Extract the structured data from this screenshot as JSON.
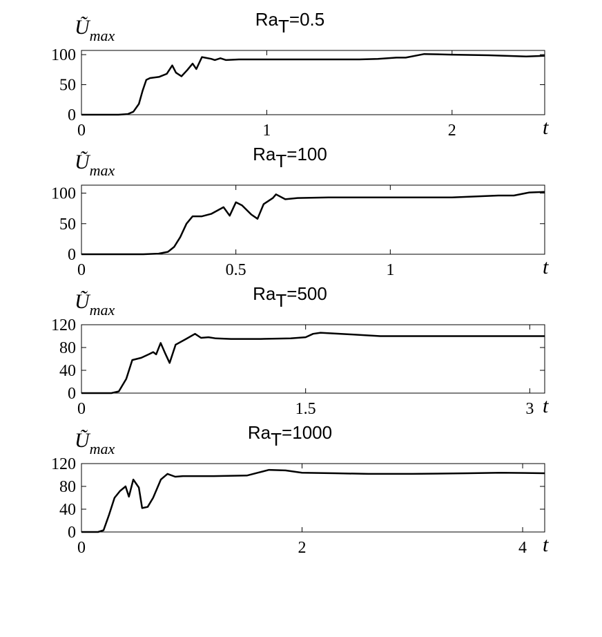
{
  "chart_data": [
    {
      "type": "line",
      "title_main": "Ra",
      "title_sub": "T",
      "title_rest": "=0.5",
      "ylabel": "Ũ",
      "ylabel_sub": "max",
      "xlabel": "t",
      "color": "#000000",
      "xlim": [
        0,
        2.5
      ],
      "xticks": [
        0,
        1,
        2
      ],
      "ylim": [
        0,
        107
      ],
      "yticks": [
        0,
        50,
        100
      ],
      "x": [
        0,
        0.2,
        0.25,
        0.28,
        0.31,
        0.33,
        0.35,
        0.37,
        0.42,
        0.46,
        0.49,
        0.51,
        0.54,
        0.57,
        0.6,
        0.62,
        0.65,
        0.7,
        0.72,
        0.75,
        0.78,
        0.85,
        1.0,
        1.5,
        1.6,
        1.7,
        1.75,
        1.85,
        2.0,
        2.2,
        2.4,
        2.5
      ],
      "y": [
        0,
        0,
        1,
        5,
        18,
        40,
        58,
        61,
        63,
        68,
        82,
        70,
        64,
        74,
        85,
        76,
        96,
        93,
        91,
        94,
        91,
        92,
        92,
        92,
        93,
        95,
        95,
        101,
        100,
        99,
        97,
        98
      ]
    },
    {
      "type": "line",
      "title_main": "Ra",
      "title_sub": "T",
      "title_rest": "=100",
      "ylabel": "Ũ",
      "ylabel_sub": "max",
      "xlabel": "t",
      "color": "#000000",
      "xlim": [
        0,
        1.5
      ],
      "xticks": [
        0,
        0.5,
        1
      ],
      "ylim": [
        0,
        113
      ],
      "yticks": [
        0,
        50,
        100
      ],
      "x": [
        0,
        0.2,
        0.25,
        0.28,
        0.3,
        0.32,
        0.34,
        0.36,
        0.39,
        0.42,
        0.46,
        0.48,
        0.5,
        0.52,
        0.55,
        0.57,
        0.59,
        0.62,
        0.63,
        0.66,
        0.7,
        0.8,
        1.0,
        1.2,
        1.35,
        1.4,
        1.45,
        1.5
      ],
      "y": [
        0,
        0,
        1,
        4,
        12,
        28,
        50,
        62,
        62,
        66,
        77,
        63,
        85,
        80,
        65,
        58,
        82,
        92,
        98,
        90,
        92,
        93,
        93,
        93,
        96,
        96,
        101,
        102
      ]
    },
    {
      "type": "line",
      "title_main": "Ra",
      "title_sub": "T",
      "title_rest": "=500",
      "ylabel": "Ũ",
      "ylabel_sub": "max",
      "xlabel": "t",
      "color": "#000000",
      "xlim": [
        0,
        3.1
      ],
      "xticks": [
        0,
        1.5,
        3
      ],
      "ylim": [
        0,
        120
      ],
      "yticks": [
        0,
        40,
        80,
        120
      ],
      "x": [
        0,
        0.2,
        0.25,
        0.3,
        0.34,
        0.4,
        0.45,
        0.48,
        0.5,
        0.53,
        0.56,
        0.59,
        0.63,
        0.7,
        0.76,
        0.8,
        0.85,
        0.9,
        1.0,
        1.2,
        1.4,
        1.5,
        1.55,
        1.6,
        1.8,
        2.0,
        2.3,
        2.6,
        3.0,
        3.1
      ],
      "y": [
        0,
        0,
        3,
        25,
        58,
        62,
        68,
        72,
        68,
        88,
        70,
        53,
        85,
        95,
        104,
        97,
        98,
        96,
        95,
        95,
        96,
        98,
        104,
        106,
        103,
        100,
        100,
        100,
        100,
        100
      ]
    },
    {
      "type": "line",
      "title_main": "Ra",
      "title_sub": "T",
      "title_rest": "=1000",
      "ylabel": "Ũ",
      "ylabel_sub": "max",
      "xlabel": "t",
      "color": "#000000",
      "xlim": [
        0,
        4.2
      ],
      "xticks": [
        0,
        2,
        4
      ],
      "ylim": [
        0,
        120
      ],
      "yticks": [
        0,
        40,
        80,
        120
      ],
      "x": [
        0,
        0.15,
        0.2,
        0.25,
        0.3,
        0.35,
        0.4,
        0.43,
        0.47,
        0.52,
        0.55,
        0.6,
        0.65,
        0.72,
        0.78,
        0.85,
        0.92,
        1.0,
        1.2,
        1.5,
        1.6,
        1.7,
        1.85,
        2.0,
        2.3,
        2.6,
        3.0,
        3.5,
        3.8,
        4.2
      ],
      "y": [
        0,
        0,
        3,
        30,
        60,
        72,
        80,
        62,
        92,
        78,
        42,
        44,
        60,
        92,
        102,
        97,
        98,
        98,
        98,
        99,
        104,
        109,
        108,
        104,
        103,
        102,
        102,
        103,
        104,
        103
      ]
    }
  ]
}
